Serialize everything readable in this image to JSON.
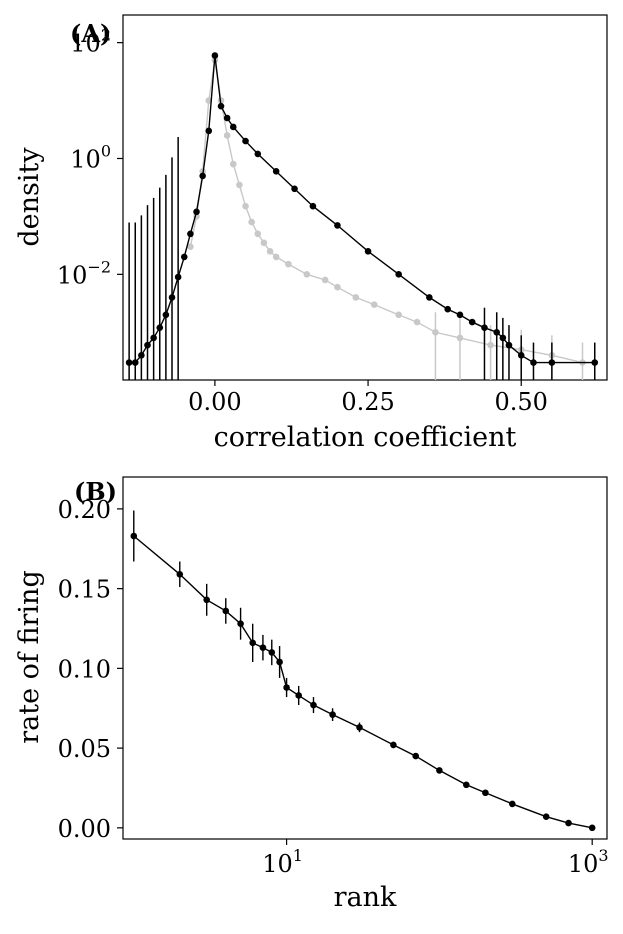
{
  "chart_data": [
    {
      "type": "line",
      "panel_label": "(A)",
      "xlabel": "correlation coefficient",
      "ylabel": "density",
      "xlim": [
        -0.15,
        0.64
      ],
      "ylim": [
        0.00015,
        300
      ],
      "yscale": "log",
      "grid": false,
      "xticks": [
        {
          "value": 0.0,
          "label": "0.00"
        },
        {
          "value": 0.25,
          "label": "0.25"
        },
        {
          "value": 0.5,
          "label": "0.50"
        }
      ],
      "yticks": [
        {
          "value": 100,
          "base": "10",
          "exp": "2"
        },
        {
          "value": 1,
          "base": "10",
          "exp": "0"
        },
        {
          "value": 0.01,
          "base": "10",
          "exp": "−2"
        }
      ],
      "series": [
        {
          "color": "#000000",
          "x": [
            -0.14,
            -0.13,
            -0.12,
            -0.11,
            -0.1,
            -0.09,
            -0.08,
            -0.07,
            -0.06,
            -0.05,
            -0.04,
            -0.03,
            -0.02,
            -0.01,
            0.0,
            0.01,
            0.02,
            0.03,
            0.05,
            0.07,
            0.1,
            0.13,
            0.16,
            0.2,
            0.25,
            0.3,
            0.35,
            0.38,
            0.4,
            0.42,
            0.44,
            0.46,
            0.47,
            0.48,
            0.5,
            0.52,
            0.55,
            0.62
          ],
          "y": [
            0.0003,
            0.0003,
            0.0004,
            0.0006,
            0.0008,
            0.0012,
            0.002,
            0.004,
            0.009,
            0.02,
            0.05,
            0.12,
            0.5,
            3,
            60,
            8,
            5,
            3.5,
            2,
            1.2,
            0.6,
            0.3,
            0.15,
            0.07,
            0.025,
            0.01,
            0.004,
            0.0025,
            0.002,
            0.0015,
            0.0012,
            0.001,
            0.0008,
            0.0006,
            0.0004,
            0.0003,
            0.0003,
            0.0003
          ]
        },
        {
          "color": "#c8c8c8",
          "x": [
            -0.04,
            -0.03,
            -0.02,
            -0.01,
            0.0,
            0.01,
            0.02,
            0.03,
            0.04,
            0.05,
            0.06,
            0.07,
            0.08,
            0.09,
            0.1,
            0.12,
            0.15,
            0.18,
            0.2,
            0.23,
            0.26,
            0.3,
            0.33,
            0.36,
            0.4,
            0.45,
            0.5,
            0.55,
            0.6
          ],
          "y": [
            0.03,
            0.1,
            0.6,
            10,
            50,
            10,
            2.5,
            0.8,
            0.35,
            0.15,
            0.08,
            0.05,
            0.035,
            0.025,
            0.02,
            0.015,
            0.01,
            0.008,
            0.006,
            0.004,
            0.003,
            0.002,
            0.0015,
            0.001,
            0.0008,
            0.0006,
            0.0005,
            0.0004,
            0.0003
          ]
        }
      ]
    },
    {
      "type": "line",
      "panel_label": "(B)",
      "xlabel": "rank",
      "ylabel": "rate of firing",
      "xlim": [
        0.85,
        1250
      ],
      "ylim": [
        -0.007,
        0.22
      ],
      "xscale": "log",
      "grid": false,
      "xticks": [
        {
          "value": 10,
          "base": "10",
          "exp": "1"
        },
        {
          "value": 1000,
          "base": "10",
          "exp": "3"
        }
      ],
      "yticks": [
        {
          "value": 0.0,
          "label": "0.00"
        },
        {
          "value": 0.05,
          "label": "0.05"
        },
        {
          "value": 0.1,
          "label": "0.10"
        },
        {
          "value": 0.15,
          "label": "0.15"
        },
        {
          "value": 0.2,
          "label": "0.20"
        }
      ],
      "series": [
        {
          "color": "#000000",
          "x": [
            1,
            2,
            3,
            4,
            5,
            6,
            7,
            8,
            9,
            10,
            12,
            15,
            20,
            30,
            50,
            70,
            100,
            150,
            200,
            300,
            500,
            700,
            1000
          ],
          "y": [
            0.183,
            0.159,
            0.143,
            0.136,
            0.128,
            0.116,
            0.113,
            0.11,
            0.104,
            0.088,
            0.083,
            0.077,
            0.071,
            0.063,
            0.052,
            0.045,
            0.036,
            0.027,
            0.022,
            0.015,
            0.007,
            0.003,
            0.0
          ],
          "err": [
            0.016,
            0.008,
            0.01,
            0.008,
            0.01,
            0.012,
            0.008,
            0.008,
            0.01,
            0.006,
            0.006,
            0.005,
            0.004,
            0.003,
            0.002,
            0.001,
            0.001,
            0.001,
            0.001,
            0.001,
            0.001,
            0.001,
            0.001
          ]
        }
      ]
    }
  ]
}
